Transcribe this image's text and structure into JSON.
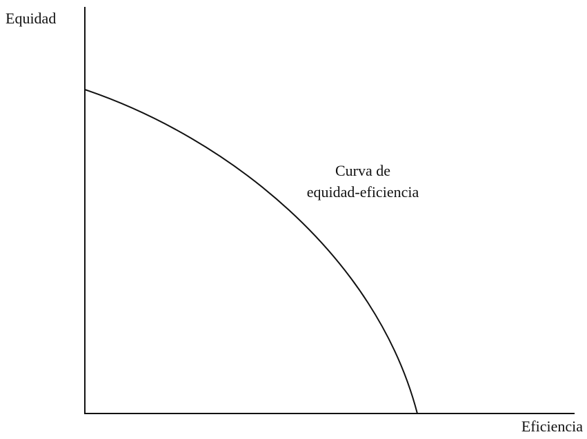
{
  "y_axis_label": "Equidad",
  "x_axis_label": "Eficiencia",
  "curve_label": [
    "Curva de",
    "equidad-eficiencia"
  ]
}
